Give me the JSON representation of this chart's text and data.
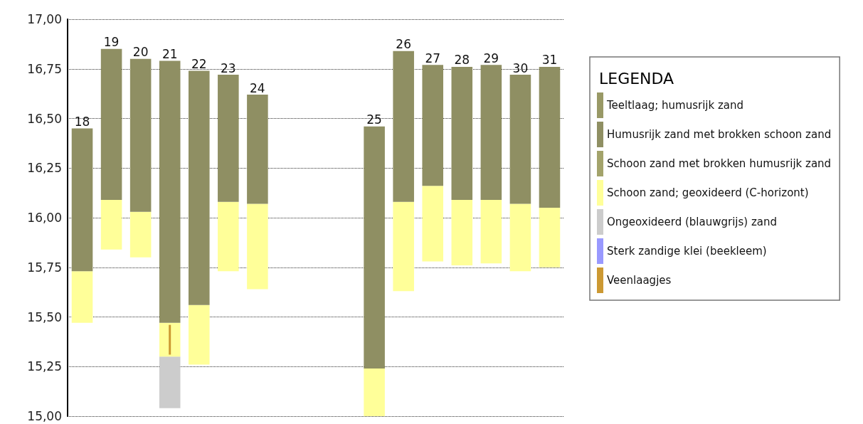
{
  "chart_data": {
    "type": "bar",
    "legend_title": "LEGENDA",
    "legend": "right",
    "grid": "y",
    "categories": [
      "18",
      "19",
      "20",
      "21",
      "22",
      "23",
      "24",
      null,
      null,
      null,
      "25",
      "26",
      "27",
      "28",
      "29",
      "30",
      "31"
    ],
    "ylim": [
      15.0,
      17.0
    ],
    "yticks": [
      {
        "value": 15.0,
        "label": "15,00"
      },
      {
        "value": 15.25,
        "label": "15,25"
      },
      {
        "value": 15.5,
        "label": "15,50"
      },
      {
        "value": 15.75,
        "label": "15,75"
      },
      {
        "value": 16.0,
        "label": "16,00"
      },
      {
        "value": 16.25,
        "label": "16,25"
      },
      {
        "value": 16.5,
        "label": "16,50"
      },
      {
        "value": 16.75,
        "label": "16,75"
      },
      {
        "value": 17.0,
        "label": "17,00"
      }
    ],
    "series": [
      {
        "name": "Sterk zandige klei (beekleem)",
        "color": "#9999ff",
        "values": [
          null,
          null,
          null,
          null,
          null,
          null,
          null,
          null,
          null,
          null,
          null,
          null,
          null,
          null,
          null,
          null,
          null
        ]
      },
      {
        "name": "Ongeoxideerd (blauwgrijs) zand",
        "color": "#cccccc",
        "base": [
          null,
          null,
          null,
          15.04,
          null,
          null,
          null,
          null,
          null,
          null,
          null,
          null,
          null,
          null,
          null,
          null,
          null
        ],
        "values": [
          null,
          null,
          null,
          0.26,
          null,
          null,
          null,
          null,
          null,
          null,
          null,
          null,
          null,
          null,
          null,
          null,
          null
        ]
      },
      {
        "name": "Schoon zand; geoxideerd (C-horizont)",
        "color": "#ffff99",
        "base": [
          15.47,
          15.84,
          15.8,
          15.3,
          15.26,
          15.73,
          15.64,
          null,
          null,
          null,
          15.0,
          15.63,
          15.78,
          15.76,
          15.77,
          15.73,
          15.75
        ],
        "values": [
          0.26,
          0.25,
          0.23,
          0.17,
          0.3,
          0.35,
          0.43,
          null,
          null,
          null,
          0.24,
          0.45,
          0.38,
          0.33,
          0.32,
          0.34,
          0.3
        ]
      },
      {
        "name": "Schoon zand met brokken humusrijk zand",
        "color": "#a3a36b",
        "values": [
          null,
          null,
          null,
          null,
          null,
          null,
          null,
          null,
          null,
          null,
          null,
          null,
          null,
          null,
          null,
          null,
          null
        ]
      },
      {
        "name": "Humusrijk zand met brokken schoon zand",
        "color": "#8f8f63",
        "base": [
          15.73,
          16.09,
          16.03,
          15.47,
          15.56,
          16.08,
          16.07,
          null,
          null,
          null,
          15.24,
          16.08,
          16.16,
          16.09,
          16.09,
          16.07,
          16.05
        ],
        "values": [
          0.72,
          0.76,
          0.77,
          1.32,
          1.18,
          0.64,
          0.55,
          null,
          null,
          null,
          1.22,
          0.76,
          0.61,
          0.67,
          0.68,
          0.65,
          0.71
        ]
      },
      {
        "name": "Teeltlaag; humusrijk zand",
        "color": "#999966",
        "values": [
          null,
          null,
          null,
          null,
          null,
          null,
          null,
          null,
          null,
          null,
          null,
          null,
          null,
          null,
          null,
          null,
          null
        ]
      },
      {
        "name": "Veenlaagjes",
        "type": "line",
        "color": "#cc9933",
        "x": [
          "21",
          "21"
        ],
        "values": [
          15.46,
          15.31
        ]
      }
    ]
  }
}
